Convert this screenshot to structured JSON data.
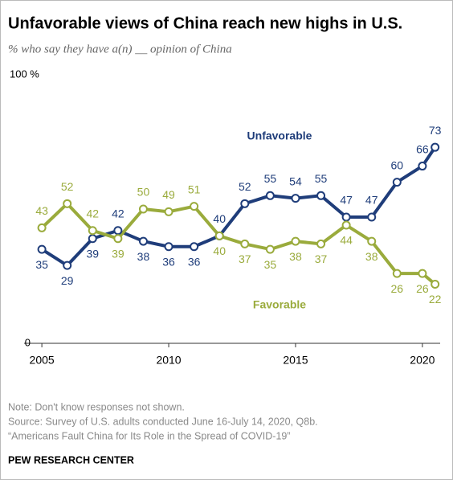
{
  "chart_data": {
    "type": "line",
    "title": "Unfavorable views of China reach new highs in U.S.",
    "subtitle": "% who say they have a(n) __ opinion of China",
    "x": [
      2005,
      2006,
      2007,
      2008,
      2009,
      2010,
      2011,
      2012,
      2013,
      2014,
      2015,
      2016,
      2017,
      2018,
      2019,
      2020,
      2020.5
    ],
    "series": [
      {
        "name": "Unfavorable",
        "color": "#1f3d7a",
        "values": [
          35,
          29,
          39,
          42,
          38,
          36,
          36,
          40,
          52,
          55,
          54,
          55,
          47,
          47,
          60,
          66,
          73
        ]
      },
      {
        "name": "Favorable",
        "color": "#9aab3c",
        "values": [
          43,
          52,
          42,
          39,
          50,
          49,
          51,
          40,
          37,
          35,
          38,
          37,
          44,
          38,
          26,
          26,
          22
        ]
      }
    ],
    "xlim": [
      2004.3,
      2020.7
    ],
    "xticks": [
      2005,
      2010,
      2015,
      2020
    ],
    "ylim": [
      0,
      100
    ],
    "yticks": [
      0,
      {
        "value": 100,
        "label": "100 %"
      }
    ],
    "notes": [
      "Note: Don't know responses not shown.",
      "Source: Survey of U.S. adults conducted June 16-July 14, 2020, Q8b.",
      "“Americans Fault China for Its Role in the Spread of COVID-19”"
    ],
    "credit": "PEW RESEARCH CENTER"
  }
}
